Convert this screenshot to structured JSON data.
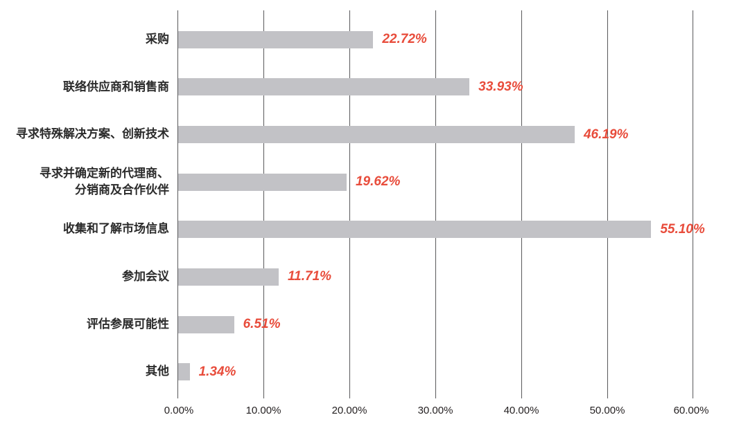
{
  "chart_data": {
    "type": "bar",
    "orientation": "horizontal",
    "title": "",
    "categories": [
      "采购",
      "联络供应商和销售商",
      "寻求特殊解决方案、创新技术",
      "寻求并确定新的代理商、\n分销商及合作伙伴",
      "收集和了解市场信息",
      "参加会议",
      "评估参展可能性",
      "其他"
    ],
    "values": [
      22.72,
      33.93,
      46.19,
      19.62,
      55.1,
      11.71,
      6.51,
      1.34
    ],
    "value_labels": [
      "22.72%",
      "33.93%",
      "46.19%",
      "19.62%",
      "55.10%",
      "11.71%",
      "6.51%",
      "1.34%"
    ],
    "x_ticks": [
      "0.00%",
      "10.00%",
      "20.00%",
      "30.00%",
      "40.00%",
      "50.00%",
      "60.00%"
    ],
    "xlim": [
      0,
      60
    ],
    "grid": true,
    "legend": false,
    "bar_color": "#c2c2c6",
    "value_color": "#e84c3b",
    "gridline_color": "#58585a"
  }
}
